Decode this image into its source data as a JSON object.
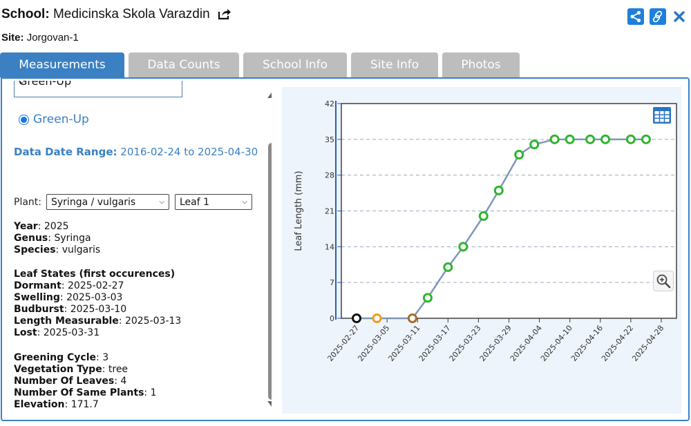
{
  "header": {
    "school_label": "School:",
    "school_name": "Medicinska Skola Varazdin",
    "site_label": "Site:",
    "site_name": "Jorgovan-1"
  },
  "icons": {
    "share": "share-icon",
    "link": "link-icon",
    "close": "close-icon",
    "export": "export-icon",
    "table": "table-icon",
    "zoom": "zoom-in-icon"
  },
  "colors": {
    "accent": "#3a80c2",
    "tab_inactive": "#bdbdbd",
    "line": "#7f95b8",
    "point_green": "#2db52d",
    "point_orange": "#f39a1e",
    "point_brown": "#a86a2a",
    "point_black": "#111111"
  },
  "tabs": [
    {
      "label": "Measurements",
      "active": true
    },
    {
      "label": "Data Counts",
      "active": false
    },
    {
      "label": "School Info",
      "active": false
    },
    {
      "label": "Site Info",
      "active": false
    },
    {
      "label": "Photos",
      "active": false
    }
  ],
  "protocol_select": {
    "value": "Green-Up"
  },
  "radio": {
    "label": "Green-Up",
    "checked": true
  },
  "date_range": {
    "label": "Data Date Range:",
    "value": "2016-02-24 to 2025-04-30"
  },
  "plant": {
    "label": "Plant:",
    "plant_value": "Syringa / vulgaris",
    "leaf_value": "Leaf 1"
  },
  "details1": [
    {
      "label": "Year",
      "value": "2025"
    },
    {
      "label": "Genus",
      "value": "Syringa"
    },
    {
      "label": "Species",
      "value": "vulgaris"
    }
  ],
  "leaf_states": {
    "heading": "Leaf States (first occurences)",
    "items": [
      {
        "label": "Dormant",
        "value": "2025-02-27"
      },
      {
        "label": "Swelling",
        "value": "2025-03-03"
      },
      {
        "label": "Budburst",
        "value": "2025-03-10"
      },
      {
        "label": "Length Measurable",
        "value": "2025-03-13"
      },
      {
        "label": "Lost",
        "value": "2025-03-31"
      }
    ]
  },
  "details2": [
    {
      "label": "Greening Cycle",
      "value": "3"
    },
    {
      "label": "Vegetation Type",
      "value": "tree"
    },
    {
      "label": "Number Of Leaves",
      "value": "4"
    },
    {
      "label": "Number Of Same Plants",
      "value": "1"
    },
    {
      "label": "Elevation",
      "value": "171.7"
    }
  ],
  "chart_data": {
    "type": "line",
    "ylabel": "Leaf Length (mm)",
    "ylim": [
      0,
      42
    ],
    "yticks": [
      0,
      7,
      14,
      21,
      28,
      35,
      42
    ],
    "xlim": [
      "2025-02-24",
      "2025-05-01"
    ],
    "xticks": [
      "2025-02-27",
      "2025-03-05",
      "2025-03-11",
      "2025-03-17",
      "2025-03-23",
      "2025-03-29",
      "2025-04-04",
      "2025-04-10",
      "2025-04-16",
      "2025-04-22",
      "2025-04-28"
    ],
    "grid": "horizontal dashed",
    "points": [
      {
        "x": "2025-02-27",
        "y": 0,
        "color": "#111111"
      },
      {
        "x": "2025-03-03",
        "y": 0,
        "color": "#f39a1e"
      },
      {
        "x": "2025-03-10",
        "y": 0,
        "color": "#a86a2a"
      },
      {
        "x": "2025-03-13",
        "y": 4,
        "color": "#2db52d"
      },
      {
        "x": "2025-03-17",
        "y": 10,
        "color": "#2db52d"
      },
      {
        "x": "2025-03-20",
        "y": 14,
        "color": "#2db52d"
      },
      {
        "x": "2025-03-24",
        "y": 20,
        "color": "#2db52d"
      },
      {
        "x": "2025-03-27",
        "y": 25,
        "color": "#2db52d"
      },
      {
        "x": "2025-03-31",
        "y": 32,
        "color": "#2db52d"
      },
      {
        "x": "2025-04-03",
        "y": 34,
        "color": "#2db52d"
      },
      {
        "x": "2025-04-07",
        "y": 35,
        "color": "#2db52d"
      },
      {
        "x": "2025-04-10",
        "y": 35,
        "color": "#2db52d"
      },
      {
        "x": "2025-04-14",
        "y": 35,
        "color": "#2db52d"
      },
      {
        "x": "2025-04-17",
        "y": 35,
        "color": "#2db52d"
      },
      {
        "x": "2025-04-22",
        "y": 35,
        "color": "#2db52d"
      },
      {
        "x": "2025-04-25",
        "y": 35,
        "color": "#2db52d"
      }
    ]
  }
}
